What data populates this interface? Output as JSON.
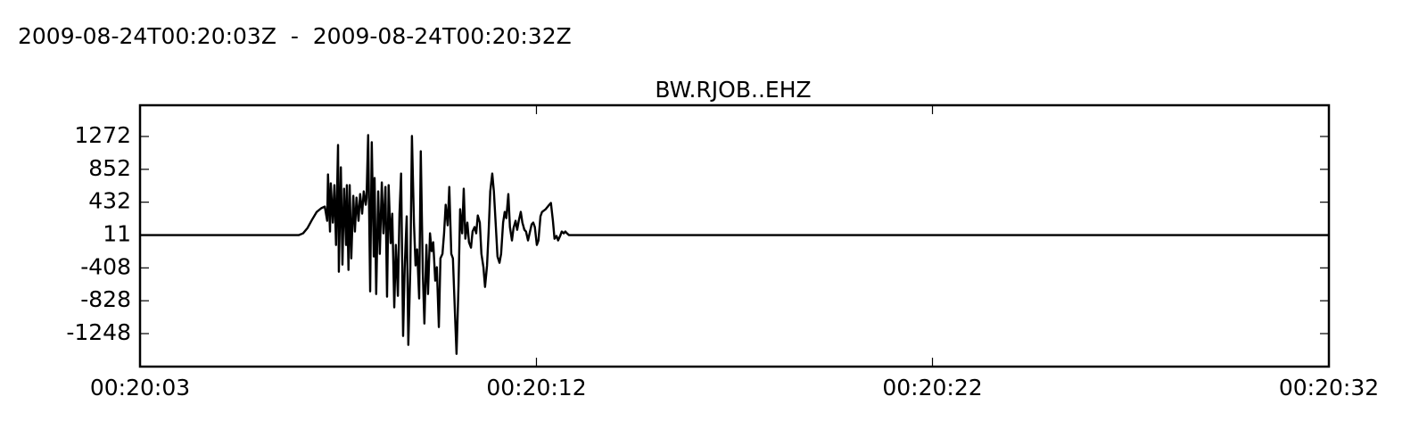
{
  "chart_data": {
    "type": "line",
    "subtitle": "2009-08-24T00:20:03Z  -  2009-08-24T00:20:32Z",
    "title": "BW.RJOB..EHZ",
    "color": "#000000",
    "xlim": [
      3,
      32.6
    ],
    "ylim": [
      -1670,
      1671
    ],
    "xticks": [
      {
        "value": 3,
        "label": "00:20:03"
      },
      {
        "value": 12.87,
        "label": "00:20:12"
      },
      {
        "value": 22.73,
        "label": "00:20:22"
      },
      {
        "value": 32.6,
        "label": "00:20:32"
      }
    ],
    "yticks": [
      1272,
      852,
      432,
      11,
      -408,
      -828,
      -1248
    ],
    "x": [
      3.0,
      6.95,
      7.06,
      7.17,
      7.28,
      7.4,
      7.51,
      7.6,
      7.66,
      7.68,
      7.73,
      7.75,
      7.8,
      7.84,
      7.88,
      7.93,
      7.95,
      8.0,
      8.04,
      8.08,
      8.13,
      8.15,
      8.19,
      8.22,
      8.26,
      8.31,
      8.35,
      8.39,
      8.44,
      8.48,
      8.53,
      8.57,
      8.62,
      8.64,
      8.68,
      8.73,
      8.77,
      8.82,
      8.84,
      8.88,
      8.93,
      8.97,
      9.02,
      9.06,
      9.11,
      9.15,
      9.19,
      9.24,
      9.28,
      9.33,
      9.37,
      9.42,
      9.46,
      9.5,
      9.55,
      9.59,
      9.64,
      9.68,
      9.73,
      9.77,
      9.82,
      9.86,
      9.9,
      9.95,
      9.99,
      10.04,
      10.08,
      10.13,
      10.17,
      10.22,
      10.26,
      10.3,
      10.35,
      10.39,
      10.44,
      10.48,
      10.53,
      10.57,
      10.61,
      10.66,
      10.7,
      10.75,
      10.79,
      10.84,
      10.88,
      10.93,
      10.97,
      11.02,
      11.06,
      11.1,
      11.15,
      11.19,
      11.24,
      11.28,
      11.33,
      11.37,
      11.41,
      11.46,
      11.5,
      11.55,
      11.59,
      11.64,
      11.68,
      11.72,
      11.77,
      11.81,
      11.86,
      11.9,
      11.95,
      11.99,
      12.04,
      12.08,
      12.12,
      12.17,
      12.21,
      12.26,
      12.3,
      12.35,
      12.39,
      12.43,
      12.48,
      12.52,
      12.57,
      12.61,
      12.66,
      12.7,
      12.75,
      12.79,
      12.83,
      12.88,
      12.92,
      12.97,
      13.01,
      13.1,
      13.19,
      13.23,
      13.28,
      13.32,
      13.37,
      13.41,
      13.46,
      13.5,
      13.55,
      13.59,
      13.63,
      13.68,
      13.72,
      32.6
    ],
    "values": [
      11,
      11,
      34,
      102,
      205,
      308,
      354,
      376,
      194,
      787,
      57,
      673,
      171,
      650,
      -115,
      1163,
      -457,
      878,
      -366,
      604,
      -115,
      650,
      -434,
      650,
      -286,
      513,
      57,
      490,
      194,
      536,
      285,
      570,
      399,
      490,
      1289,
      -708,
      1198,
      -263,
      741,
      -742,
      570,
      -229,
      684,
      34,
      627,
      -776,
      650,
      -92,
      285,
      -913,
      -115,
      -765,
      285,
      798,
      -1278,
      -400,
      251,
      -1392,
      -400,
      1278,
      171,
      -377,
      -172,
      -799,
      1083,
      -457,
      -1119,
      -115,
      -742,
      34,
      -194,
      -80,
      -571,
      -400,
      -1164,
      -286,
      -229,
      34,
      399,
      137,
      627,
      -229,
      -286,
      -970,
      -1507,
      -628,
      342,
      34,
      604,
      -35,
      171,
      -80,
      -149,
      57,
      114,
      34,
      262,
      171,
      -229,
      -400,
      -651,
      -377,
      57,
      570,
      798,
      570,
      114,
      -263,
      -343,
      -229,
      171,
      308,
      228,
      536,
      114,
      -57,
      102,
      194,
      79,
      194,
      308,
      171,
      79,
      57,
      -57,
      34,
      148,
      171,
      114,
      -115,
      -57,
      251,
      308,
      342,
      399,
      422,
      194,
      -35,
      0,
      -57,
      0,
      57,
      34,
      57,
      34,
      11,
      11,
      11
    ]
  }
}
